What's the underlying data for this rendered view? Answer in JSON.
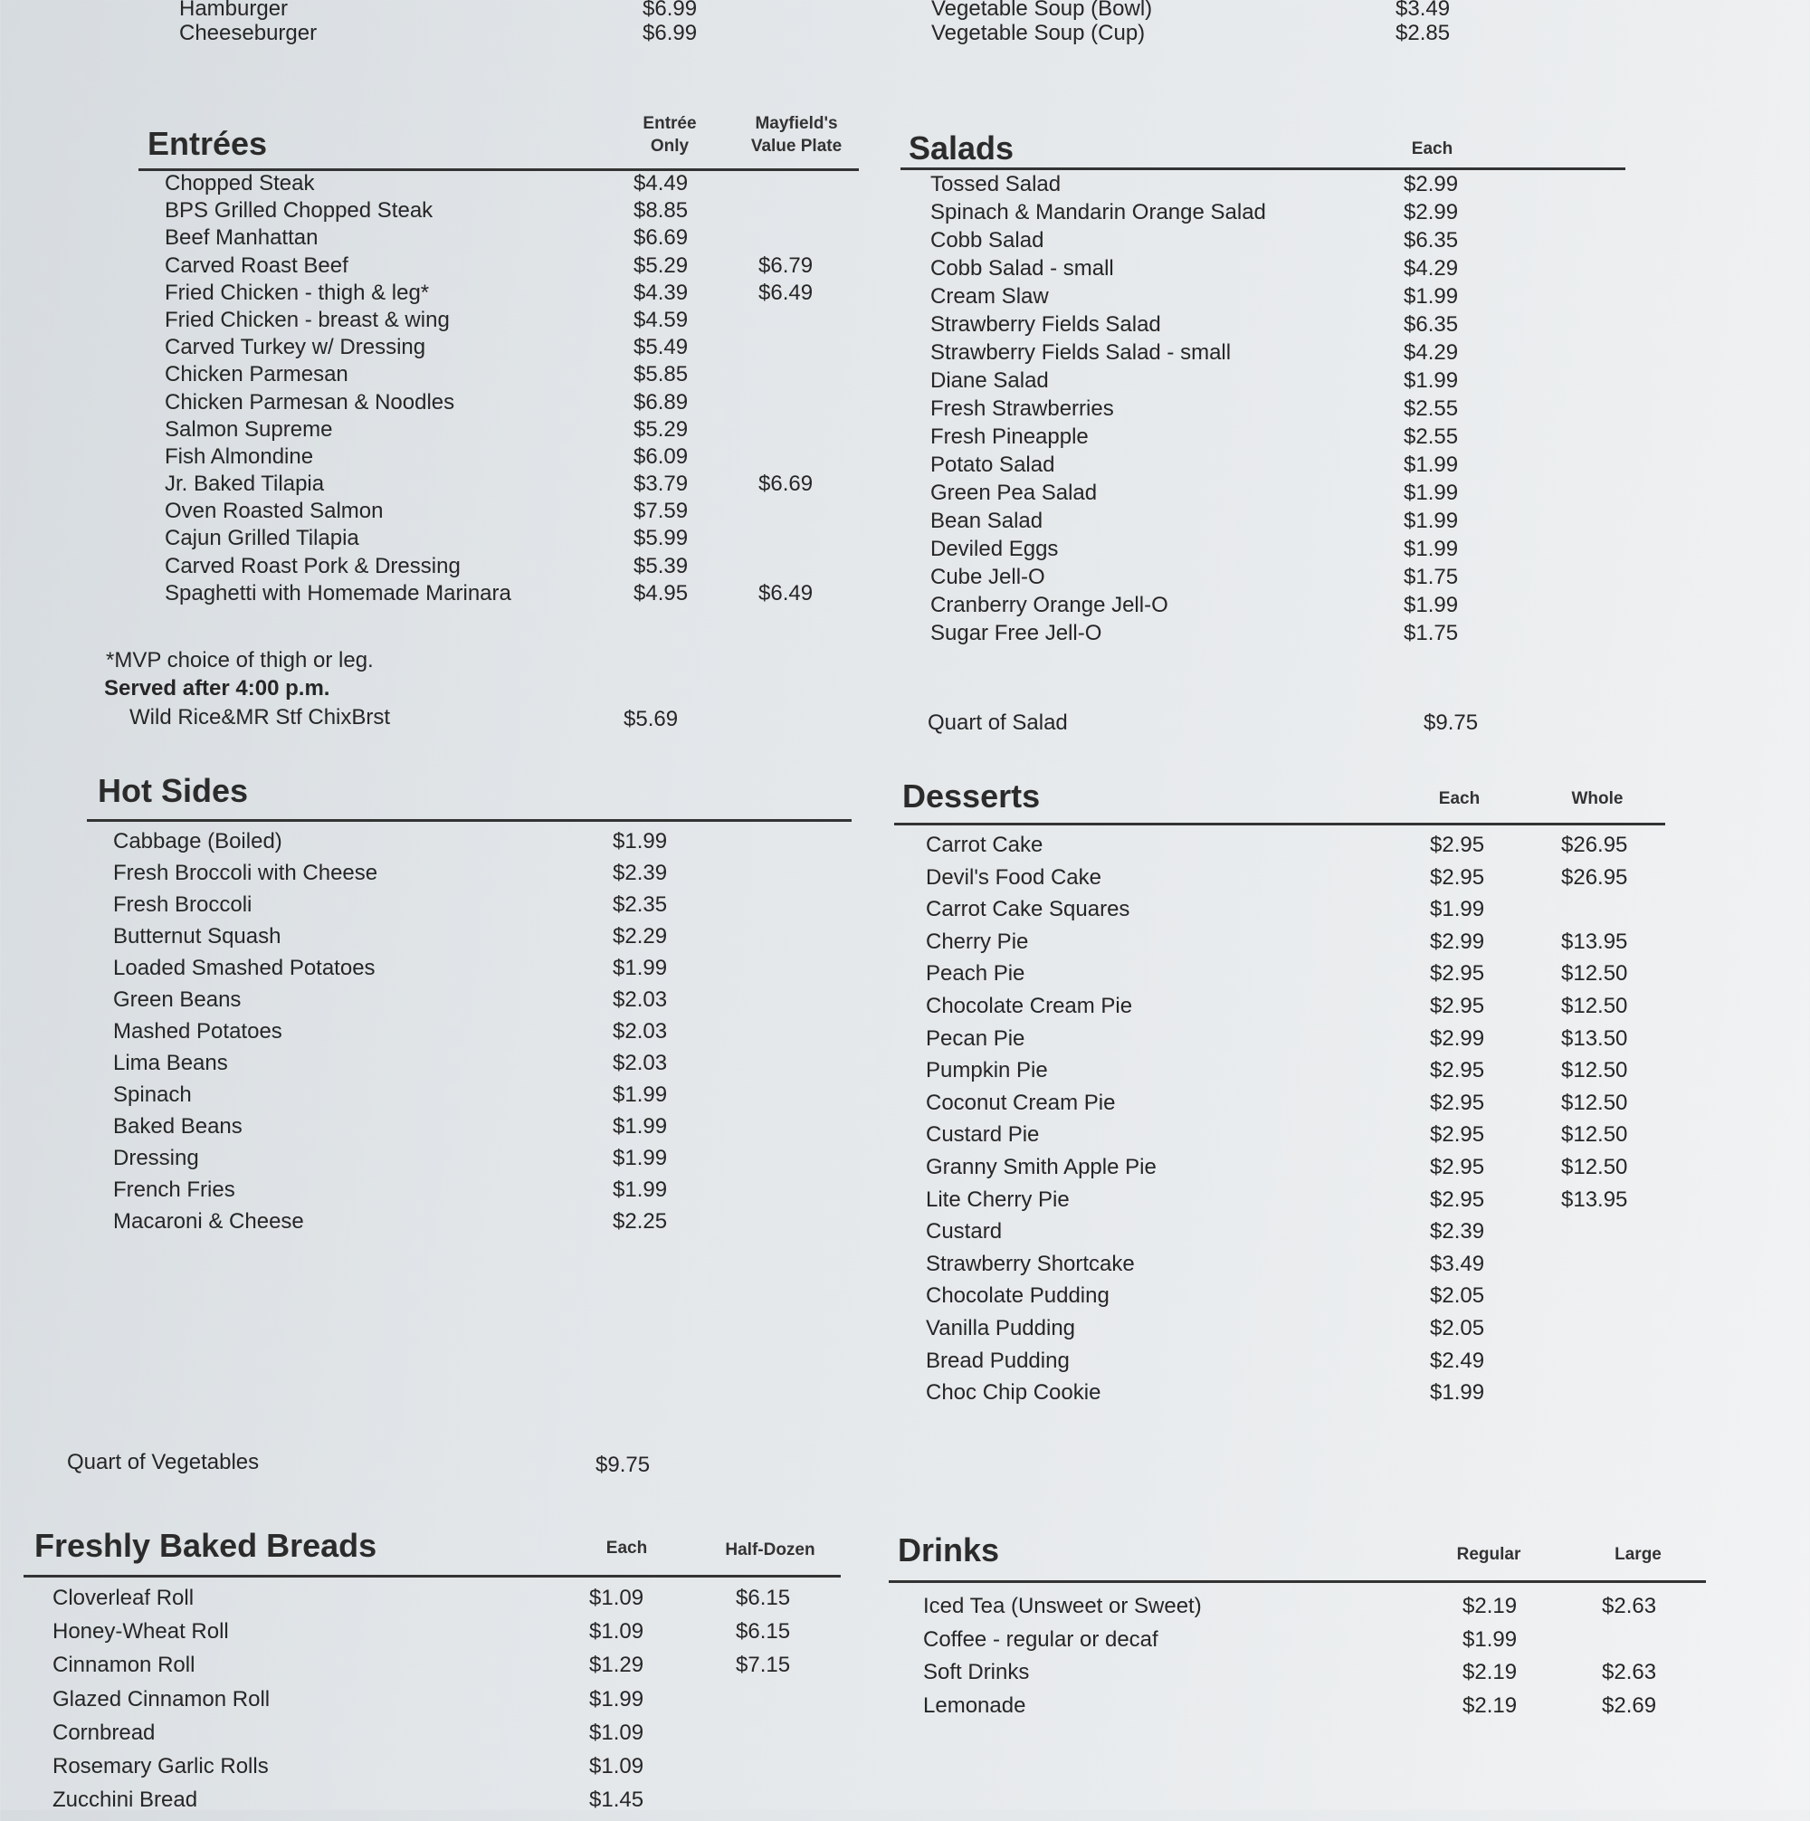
{
  "top": {
    "left": [
      {
        "name": "Hamburger",
        "price": "$6.99"
      },
      {
        "name": "Cheeseburger",
        "price": "$6.99"
      }
    ],
    "right": [
      {
        "name": "Vegetable Soup (Bowl)",
        "price": "$3.49"
      },
      {
        "name": "Vegetable Soup (Cup)",
        "price": "$2.85"
      }
    ]
  },
  "entrees": {
    "title": "Entrées",
    "col1": "Entrée Only",
    "col2": "Mayfield's Value Plate",
    "items": [
      {
        "name": "Chopped Steak",
        "price": "$4.49",
        "plate": ""
      },
      {
        "name": "BPS Grilled Chopped Steak",
        "price": "$8.85",
        "plate": ""
      },
      {
        "name": "Beef Manhattan",
        "price": "$6.69",
        "plate": ""
      },
      {
        "name": "Carved Roast Beef",
        "price": "$5.29",
        "plate": "$6.79"
      },
      {
        "name": "Fried Chicken - thigh & leg*",
        "price": "$4.39",
        "plate": "$6.49"
      },
      {
        "name": "Fried Chicken - breast & wing",
        "price": "$4.59",
        "plate": ""
      },
      {
        "name": "Carved Turkey w/ Dressing",
        "price": "$5.49",
        "plate": ""
      },
      {
        "name": "Chicken Parmesan",
        "price": "$5.85",
        "plate": ""
      },
      {
        "name": "Chicken Parmesan & Noodles",
        "price": "$6.89",
        "plate": ""
      },
      {
        "name": "Salmon Supreme",
        "price": "$5.29",
        "plate": ""
      },
      {
        "name": "Fish Almondine",
        "price": "$6.09",
        "plate": ""
      },
      {
        "name": "Jr. Baked Tilapia",
        "price": "$3.79",
        "plate": "$6.69"
      },
      {
        "name": "Oven Roasted Salmon",
        "price": "$7.59",
        "plate": ""
      },
      {
        "name": "Cajun Grilled Tilapia",
        "price": "$5.99",
        "plate": ""
      },
      {
        "name": "Carved Roast Pork & Dressing",
        "price": "$5.39",
        "plate": ""
      },
      {
        "name": "Spaghetti with Homemade Marinara",
        "price": "$4.95",
        "plate": "$6.49"
      }
    ],
    "footnote": "*MVP choice of thigh or leg.",
    "evening_label": "Served after 4:00 p.m.",
    "evening_item": {
      "name": "Wild Rice&MR Stf ChixBrst",
      "price": "$5.69"
    }
  },
  "salads": {
    "title": "Salads",
    "col1": "Each",
    "items": [
      {
        "name": "Tossed Salad",
        "price": "$2.99"
      },
      {
        "name": "Spinach & Mandarin Orange Salad",
        "price": "$2.99"
      },
      {
        "name": "Cobb Salad",
        "price": "$6.35"
      },
      {
        "name": "Cobb Salad - small",
        "price": "$4.29"
      },
      {
        "name": "Cream Slaw",
        "price": "$1.99"
      },
      {
        "name": "Strawberry Fields Salad",
        "price": "$6.35"
      },
      {
        "name": "Strawberry Fields Salad - small",
        "price": "$4.29"
      },
      {
        "name": "Diane Salad",
        "price": "$1.99"
      },
      {
        "name": "Fresh Strawberries",
        "price": "$2.55"
      },
      {
        "name": "Fresh Pineapple",
        "price": "$2.55"
      },
      {
        "name": "Potato Salad",
        "price": "$1.99"
      },
      {
        "name": "Green Pea Salad",
        "price": "$1.99"
      },
      {
        "name": "Bean Salad",
        "price": "$1.99"
      },
      {
        "name": "Deviled Eggs",
        "price": "$1.99"
      },
      {
        "name": "Cube Jell-O",
        "price": "$1.75"
      },
      {
        "name": "Cranberry Orange Jell-O",
        "price": "$1.99"
      },
      {
        "name": "Sugar Free Jell-O",
        "price": "$1.75"
      }
    ],
    "quart": {
      "name": "Quart of Salad",
      "price": "$9.75"
    }
  },
  "hot_sides": {
    "title": "Hot Sides",
    "items": [
      {
        "name": "Cabbage (Boiled)",
        "price": "$1.99"
      },
      {
        "name": "Fresh Broccoli with Cheese",
        "price": "$2.39"
      },
      {
        "name": "Fresh Broccoli",
        "price": "$2.35"
      },
      {
        "name": "Butternut Squash",
        "price": "$2.29"
      },
      {
        "name": "Loaded Smashed Potatoes",
        "price": "$1.99"
      },
      {
        "name": "Green Beans",
        "price": "$2.03"
      },
      {
        "name": "Mashed Potatoes",
        "price": "$2.03"
      },
      {
        "name": "Lima Beans",
        "price": "$2.03"
      },
      {
        "name": "Spinach",
        "price": "$1.99"
      },
      {
        "name": "Baked Beans",
        "price": "$1.99"
      },
      {
        "name": "Dressing",
        "price": "$1.99"
      },
      {
        "name": "French Fries",
        "price": "$1.99"
      },
      {
        "name": "Macaroni & Cheese",
        "price": "$2.25"
      }
    ],
    "quart": {
      "name": "Quart of Vegetables",
      "price": "$9.75"
    }
  },
  "desserts": {
    "title": "Desserts",
    "col1": "Each",
    "col2": "Whole",
    "items": [
      {
        "name": "Carrot Cake",
        "price": "$2.95",
        "whole": "$26.95"
      },
      {
        "name": "Devil's Food Cake",
        "price": "$2.95",
        "whole": "$26.95"
      },
      {
        "name": "Carrot Cake Squares",
        "price": "$1.99",
        "whole": ""
      },
      {
        "name": "Cherry Pie",
        "price": "$2.99",
        "whole": "$13.95"
      },
      {
        "name": "Peach Pie",
        "price": "$2.95",
        "whole": "$12.50"
      },
      {
        "name": "Chocolate Cream Pie",
        "price": "$2.95",
        "whole": "$12.50"
      },
      {
        "name": "Pecan Pie",
        "price": "$2.99",
        "whole": "$13.50"
      },
      {
        "name": "Pumpkin Pie",
        "price": "$2.95",
        "whole": "$12.50"
      },
      {
        "name": "Coconut Cream Pie",
        "price": "$2.95",
        "whole": "$12.50"
      },
      {
        "name": "Custard Pie",
        "price": "$2.95",
        "whole": "$12.50"
      },
      {
        "name": "Granny Smith Apple Pie",
        "price": "$2.95",
        "whole": "$12.50"
      },
      {
        "name": "Lite Cherry Pie",
        "price": "$2.95",
        "whole": "$13.95"
      },
      {
        "name": "Custard",
        "price": "$2.39",
        "whole": ""
      },
      {
        "name": "Strawberry Shortcake",
        "price": "$3.49",
        "whole": ""
      },
      {
        "name": "Chocolate Pudding",
        "price": "$2.05",
        "whole": ""
      },
      {
        "name": "Vanilla Pudding",
        "price": "$2.05",
        "whole": ""
      },
      {
        "name": "Bread Pudding",
        "price": "$2.49",
        "whole": ""
      },
      {
        "name": "Choc Chip Cookie",
        "price": "$1.99",
        "whole": ""
      }
    ]
  },
  "breads": {
    "title": "Freshly Baked Breads",
    "col1": "Each",
    "col2": "Half-Dozen",
    "items": [
      {
        "name": "Cloverleaf Roll",
        "price": "$1.09",
        "half": "$6.15"
      },
      {
        "name": "Honey-Wheat Roll",
        "price": "$1.09",
        "half": "$6.15"
      },
      {
        "name": "Cinnamon Roll",
        "price": "$1.29",
        "half": "$7.15"
      },
      {
        "name": "Glazed Cinnamon Roll",
        "price": "$1.99",
        "half": ""
      },
      {
        "name": "Cornbread",
        "price": "$1.09",
        "half": ""
      },
      {
        "name": "Rosemary Garlic Rolls",
        "price": "$1.09",
        "half": ""
      },
      {
        "name": "Zucchini Bread",
        "price": "$1.45",
        "half": ""
      }
    ]
  },
  "drinks": {
    "title": "Drinks",
    "col1": "Regular",
    "col2": "Large",
    "items": [
      {
        "name": "Iced Tea (Unsweet or Sweet)",
        "price": "$2.19",
        "large": "$2.63"
      },
      {
        "name": "Coffee - regular or decaf",
        "price": "$1.99",
        "large": ""
      },
      {
        "name": "Soft Drinks",
        "price": "$2.19",
        "large": "$2.63"
      },
      {
        "name": "Lemonade",
        "price": "$2.19",
        "large": "$2.69"
      }
    ]
  }
}
